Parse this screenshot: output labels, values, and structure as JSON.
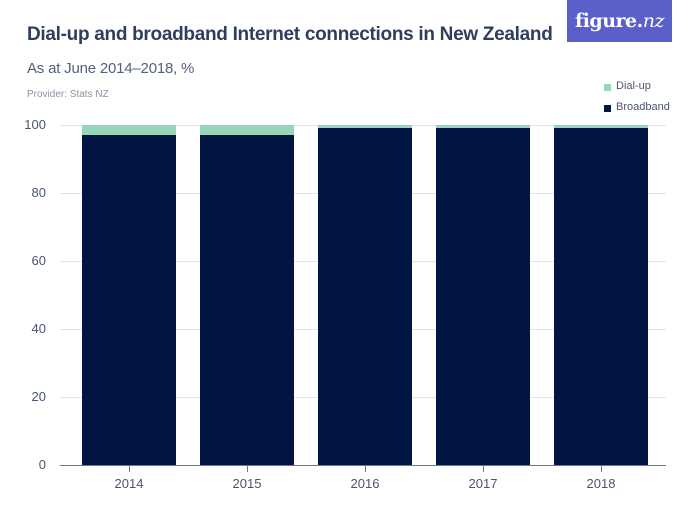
{
  "header": {
    "title": "Dial-up and broadband Internet connections in New Zealand",
    "subtitle": "As at June 2014–2018, %",
    "provider": "Provider: Stats NZ",
    "logo_main": "figure.",
    "logo_accent": "nz"
  },
  "legend": [
    {
      "label": "Dial-up",
      "color": "#96d6bb"
    },
    {
      "label": "Broadband",
      "color": "#021442"
    }
  ],
  "axis": {
    "y_ticks": [
      "100",
      "80",
      "60",
      "40",
      "20",
      "0"
    ],
    "x_labels": [
      "2014",
      "2015",
      "2016",
      "2017",
      "2018"
    ]
  },
  "chart_data": {
    "type": "bar",
    "stacked": true,
    "title": "Dial-up and broadband Internet connections in New Zealand",
    "subtitle": "As at June 2014–2018, %",
    "source": "Provider: Stats NZ",
    "categories": [
      "2014",
      "2015",
      "2016",
      "2017",
      "2018"
    ],
    "series": [
      {
        "name": "Broadband",
        "color": "#021442",
        "values": [
          97,
          97,
          99,
          99,
          99
        ]
      },
      {
        "name": "Dial-up",
        "color": "#96d6bb",
        "values": [
          3,
          3,
          1,
          1,
          1
        ]
      }
    ],
    "xlabel": "",
    "ylabel": "",
    "ylim": [
      0,
      100
    ],
    "y_ticks": [
      0,
      20,
      40,
      60,
      80,
      100
    ],
    "grid": true,
    "legend_position": "top-right"
  }
}
